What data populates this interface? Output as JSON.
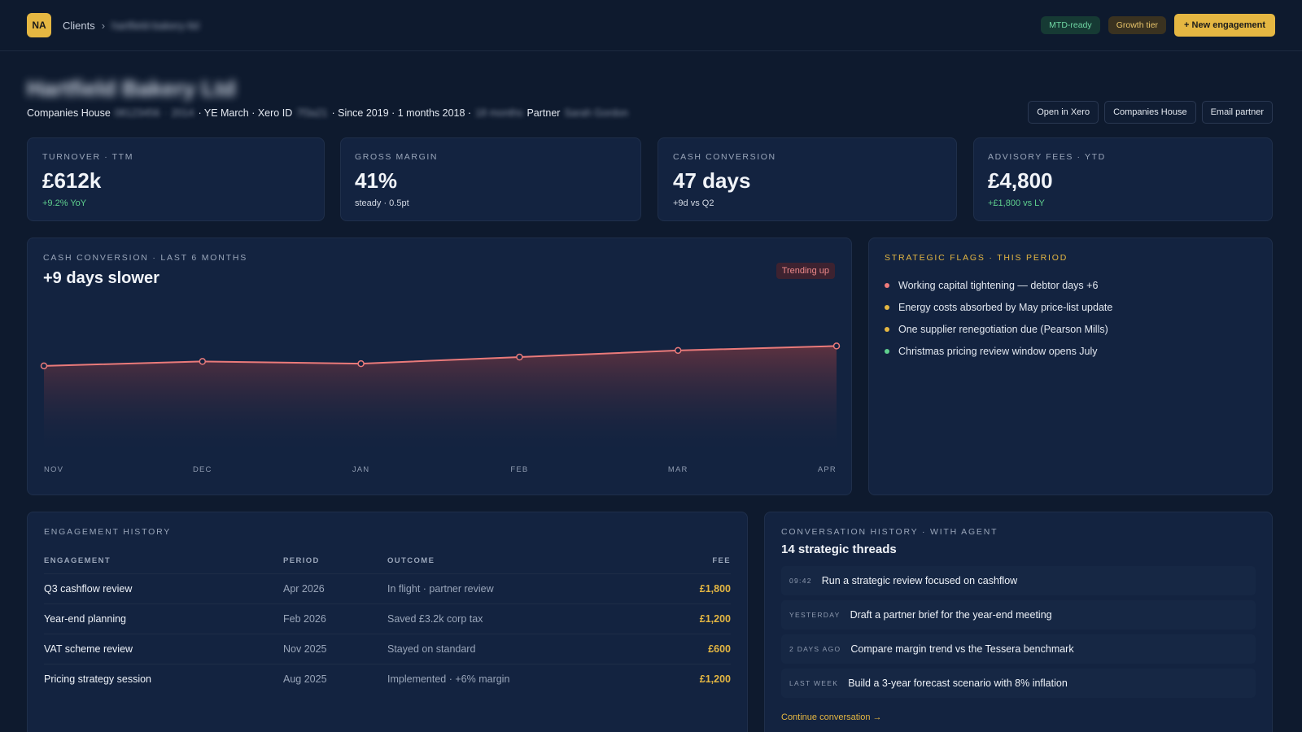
{
  "topbar": {
    "avatar_initials": "NA",
    "breadcrumb_clients": "Clients",
    "breadcrumb_sep": "›",
    "breadcrumb_client": "hartfield-bakery-ltd",
    "badge_mtd": "MTD-ready",
    "badge_tier": "Growth tier",
    "new_engagement": "+ New engagement"
  },
  "client": {
    "name": "Hartfield Bakery Ltd",
    "companies_house_label": "Companies House",
    "companies_house_number": "08123456",
    "companies_house_sep": "·",
    "companies_house_suffix": "2014",
    "ye": "· YE March · Xero ID",
    "xero_id": "7f3a21",
    "since": "· Since 2019 · 1 months 2018 ·",
    "since_blur": "18 months",
    "partner_label": "Partner",
    "partner_name": "Sarah Gordon",
    "actions": [
      "Open in Xero",
      "Companies House",
      "Email partner"
    ]
  },
  "kpis": [
    {
      "label": "Turnover · TTM",
      "value": "£612k",
      "sub": "+9.2% YoY",
      "sub_positive": true
    },
    {
      "label": "Gross margin",
      "value": "41%",
      "sub": "steady · 0.5pt",
      "sub_positive": false
    },
    {
      "label": "Cash conversion",
      "value": "47 days",
      "sub": "+9d vs Q2",
      "sub_positive": false
    },
    {
      "label": "Advisory fees · YTD",
      "value": "£4,800",
      "sub": "+£1,800 vs LY",
      "sub_positive": true
    }
  ],
  "cash_chart": {
    "label": "Cash conversion · last 6 months",
    "title": "+9 days slower",
    "badge": "Trending up",
    "colors": {
      "line": "#ea7a7a",
      "fill_top": "#6a3440"
    }
  },
  "chart_data": {
    "type": "area",
    "categories": [
      "NOV",
      "DEC",
      "JAN",
      "FEB",
      "MAR",
      "APR"
    ],
    "values": [
      38,
      40,
      39,
      42,
      45,
      47
    ],
    "ylim": [
      0,
      70
    ],
    "grid": false,
    "title": "",
    "xlabel": "",
    "ylabel": ""
  },
  "flags": {
    "label": "Strategic flags · this period",
    "items": [
      {
        "text": "Working capital tightening — debtor days +6",
        "color": "#ef7b7b"
      },
      {
        "text": "Energy costs absorbed by May price-list update",
        "color": "#e5b742"
      },
      {
        "text": "One supplier renegotiation due (Pearson Mills)",
        "color": "#e5b742"
      },
      {
        "text": "Christmas pricing review window opens July",
        "color": "#5fd08e"
      }
    ]
  },
  "engagements": {
    "label": "Engagement history",
    "headers": {
      "engagement": "Engagement",
      "period": "Period",
      "outcome": "Outcome",
      "fee": "Fee"
    },
    "rows": [
      {
        "name": "Q3 cashflow review",
        "period": "Apr 2026",
        "outcome": "In flight · partner review",
        "fee": "£1,800"
      },
      {
        "name": "Year-end planning",
        "period": "Feb 2026",
        "outcome": "Saved £3.2k corp tax",
        "fee": "£1,200"
      },
      {
        "name": "VAT scheme review",
        "period": "Nov 2025",
        "outcome": "Stayed on standard",
        "fee": "£600"
      },
      {
        "name": "Pricing strategy session",
        "period": "Aug 2025",
        "outcome": "Implemented · +6% margin",
        "fee": "£1,200"
      }
    ]
  },
  "conversations": {
    "label": "Conversation history · with agent",
    "title": "14 strategic threads",
    "threads": [
      {
        "time": "09:42",
        "text": "Run a strategic review focused on cashflow"
      },
      {
        "time": "YESTERDAY",
        "text": "Draft a partner brief for the year-end meeting"
      },
      {
        "time": "2 DAYS AGO",
        "text": "Compare margin trend vs the Tessera benchmark"
      },
      {
        "time": "LAST WEEK",
        "text": "Build a 3-year forecast scenario with 8% inflation"
      }
    ],
    "continue": "Continue conversation →"
  }
}
